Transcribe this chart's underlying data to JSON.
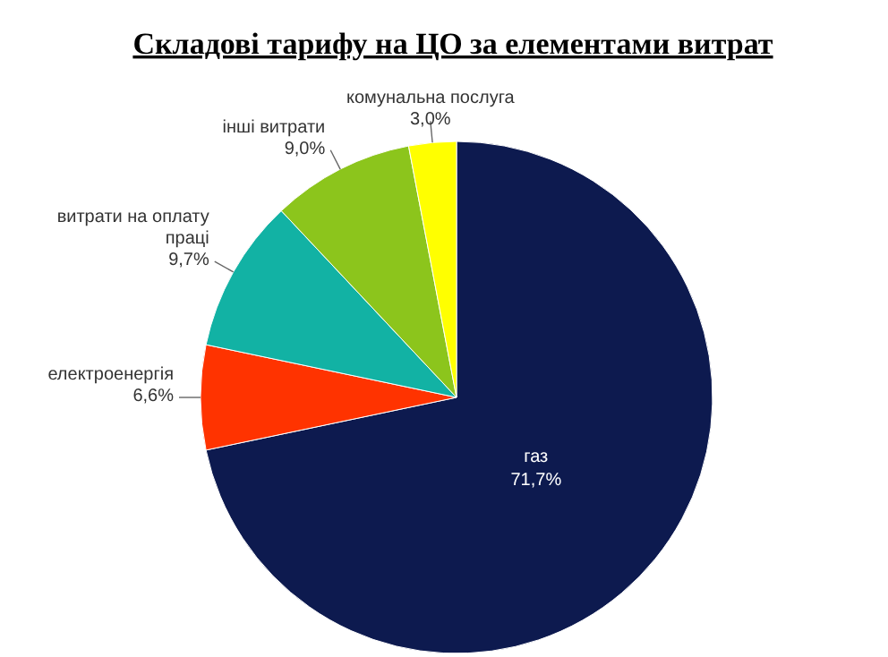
{
  "chart_data": {
    "type": "pie",
    "title": "Складові тарифу на ЦО за елементами витрат",
    "categories": [
      "газ",
      "електроенергія",
      "витрати на оплату праці",
      "інші витрати",
      "комунальна послуга"
    ],
    "values": [
      71.7,
      6.6,
      9.7,
      9.0,
      3.0
    ],
    "value_labels": [
      "71,7%",
      "6,6%",
      "9,7%",
      "9,0%",
      "3,0%"
    ],
    "colors": [
      "#0d1a4f",
      "#ff3300",
      "#12b2a4",
      "#8cc51c",
      "#ffff00"
    ]
  }
}
